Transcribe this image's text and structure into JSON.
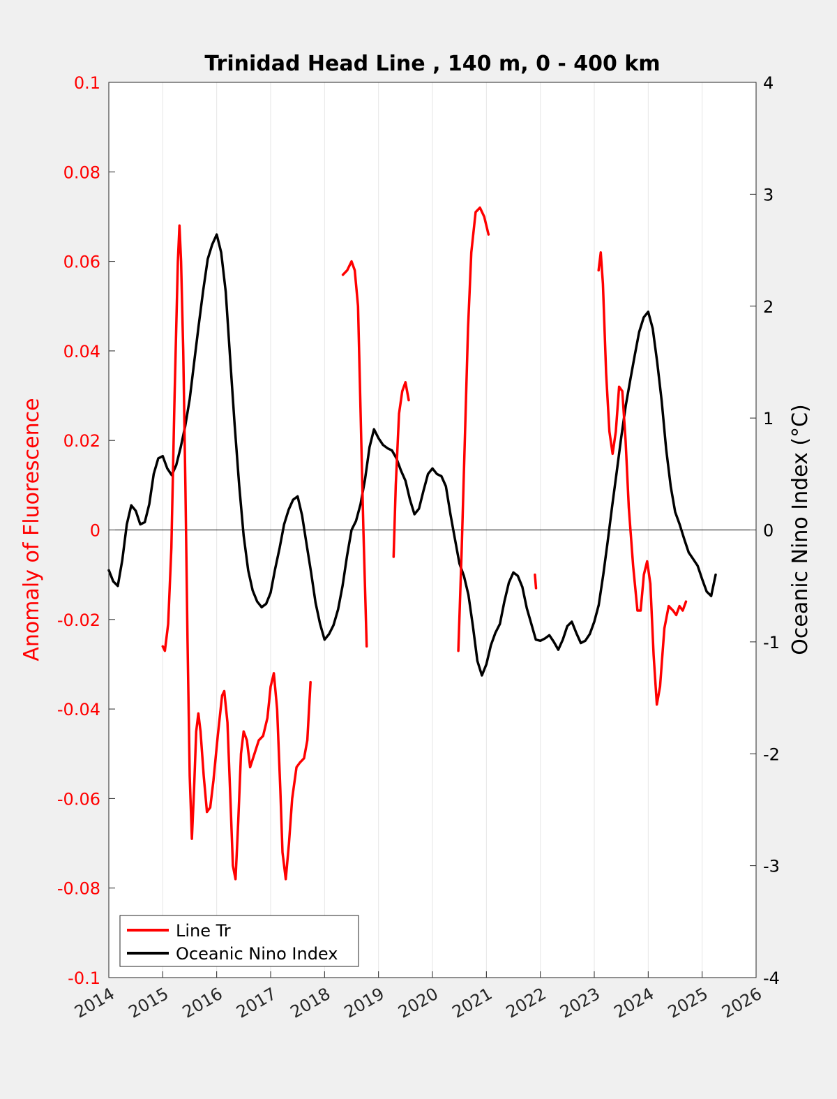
{
  "chart_data": {
    "type": "line",
    "title": "Trinidad Head Line , 140 m, 0 - 400 km",
    "x_axis": {
      "range": [
        2014,
        2026
      ],
      "ticks": [
        "2014",
        "2015",
        "2016",
        "2017",
        "2018",
        "2019",
        "2020",
        "2021",
        "2022",
        "2023",
        "2024",
        "2025",
        "2026"
      ],
      "grid": true
    },
    "y_left": {
      "label": "Anomaly of Fluorescence",
      "range": [
        -0.1,
        0.1
      ],
      "ticks": [
        "-0.1",
        "-0.08",
        "-0.06",
        "-0.04",
        "-0.02",
        "0",
        "0.02",
        "0.04",
        "0.06",
        "0.08",
        "0.1"
      ],
      "color": "#ff0000"
    },
    "y_right": {
      "label": "Oceanic Nino Index (°C)",
      "range": [
        -4,
        4
      ],
      "ticks": [
        "-4",
        "-3",
        "-2",
        "-1",
        "0",
        "1",
        "2",
        "3",
        "4"
      ],
      "color": "#000000"
    },
    "zero_line": true,
    "legend": {
      "position": "bottom-left",
      "entries": [
        "Line Tr",
        "Oceanic Nino Index"
      ]
    },
    "series": [
      {
        "name": "Line Tr",
        "axis": "left",
        "color": "#ff0000",
        "segments": [
          [
            [
              2015.0,
              -0.026
            ],
            [
              2015.04,
              -0.027
            ],
            [
              2015.1,
              -0.021
            ],
            [
              2015.16,
              -0.004
            ],
            [
              2015.22,
              0.03
            ],
            [
              2015.28,
              0.06
            ],
            [
              2015.31,
              0.068
            ],
            [
              2015.34,
              0.06
            ],
            [
              2015.38,
              0.04
            ],
            [
              2015.42,
              0.01
            ],
            [
              2015.46,
              -0.025
            ],
            [
              2015.5,
              -0.055
            ],
            [
              2015.54,
              -0.069
            ],
            [
              2015.58,
              -0.058
            ],
            [
              2015.62,
              -0.045
            ],
            [
              2015.66,
              -0.041
            ],
            [
              2015.7,
              -0.045
            ],
            [
              2015.76,
              -0.055
            ],
            [
              2015.82,
              -0.063
            ],
            [
              2015.88,
              -0.062
            ],
            [
              2015.94,
              -0.056
            ],
            [
              2016.02,
              -0.046
            ],
            [
              2016.1,
              -0.037
            ],
            [
              2016.14,
              -0.036
            ],
            [
              2016.2,
              -0.043
            ],
            [
              2016.26,
              -0.062
            ],
            [
              2016.3,
              -0.075
            ],
            [
              2016.35,
              -0.078
            ],
            [
              2016.4,
              -0.065
            ],
            [
              2016.45,
              -0.05
            ],
            [
              2016.5,
              -0.045
            ],
            [
              2016.56,
              -0.047
            ],
            [
              2016.62,
              -0.053
            ],
            [
              2016.7,
              -0.05
            ],
            [
              2016.78,
              -0.047
            ],
            [
              2016.86,
              -0.046
            ],
            [
              2016.94,
              -0.042
            ],
            [
              2017.0,
              -0.035
            ],
            [
              2017.06,
              -0.032
            ],
            [
              2017.12,
              -0.04
            ],
            [
              2017.18,
              -0.058
            ],
            [
              2017.22,
              -0.072
            ],
            [
              2017.28,
              -0.078
            ],
            [
              2017.34,
              -0.07
            ],
            [
              2017.4,
              -0.06
            ],
            [
              2017.48,
              -0.053
            ],
            [
              2017.54,
              -0.052
            ],
            [
              2017.62,
              -0.051
            ],
            [
              2017.68,
              -0.047
            ],
            [
              2017.74,
              -0.034
            ]
          ],
          [
            [
              2018.34,
              0.057
            ],
            [
              2018.42,
              0.058
            ],
            [
              2018.5,
              0.06
            ],
            [
              2018.56,
              0.058
            ],
            [
              2018.62,
              0.05
            ],
            [
              2018.66,
              0.03
            ],
            [
              2018.72,
              0.0
            ],
            [
              2018.78,
              -0.026
            ]
          ],
          [
            [
              2019.28,
              -0.006
            ],
            [
              2019.32,
              0.01
            ],
            [
              2019.38,
              0.026
            ],
            [
              2019.44,
              0.031
            ],
            [
              2019.5,
              0.033
            ],
            [
              2019.56,
              0.029
            ]
          ],
          [
            [
              2020.48,
              -0.027
            ],
            [
              2020.54,
              -0.005
            ],
            [
              2020.6,
              0.02
            ],
            [
              2020.66,
              0.045
            ],
            [
              2020.72,
              0.062
            ],
            [
              2020.8,
              0.071
            ],
            [
              2020.88,
              0.072
            ],
            [
              2020.96,
              0.07
            ],
            [
              2021.04,
              0.066
            ]
          ],
          [
            [
              2021.9,
              -0.01
            ],
            [
              2021.92,
              -0.013
            ]
          ],
          [
            [
              2023.08,
              0.058
            ],
            [
              2023.12,
              0.062
            ],
            [
              2023.16,
              0.055
            ],
            [
              2023.22,
              0.035
            ],
            [
              2023.28,
              0.022
            ],
            [
              2023.34,
              0.017
            ],
            [
              2023.4,
              0.022
            ],
            [
              2023.46,
              0.032
            ],
            [
              2023.52,
              0.031
            ],
            [
              2023.58,
              0.02
            ],
            [
              2023.64,
              0.005
            ],
            [
              2023.72,
              -0.008
            ],
            [
              2023.8,
              -0.018
            ],
            [
              2023.86,
              -0.018
            ],
            [
              2023.92,
              -0.01
            ],
            [
              2023.98,
              -0.007
            ],
            [
              2024.04,
              -0.012
            ],
            [
              2024.1,
              -0.028
            ],
            [
              2024.16,
              -0.039
            ],
            [
              2024.22,
              -0.035
            ],
            [
              2024.3,
              -0.022
            ],
            [
              2024.38,
              -0.017
            ],
            [
              2024.46,
              -0.018
            ],
            [
              2024.52,
              -0.019
            ],
            [
              2024.58,
              -0.017
            ],
            [
              2024.64,
              -0.018
            ],
            [
              2024.7,
              -0.016
            ]
          ]
        ]
      },
      {
        "name": "Oceanic Nino Index",
        "axis": "right",
        "color": "#000000",
        "segments": [
          [
            [
              2014.0,
              -0.36
            ],
            [
              2014.083,
              -0.46
            ],
            [
              2014.167,
              -0.5
            ],
            [
              2014.25,
              -0.27
            ],
            [
              2014.333,
              0.05
            ],
            [
              2014.417,
              0.22
            ],
            [
              2014.5,
              0.17
            ],
            [
              2014.583,
              0.05
            ],
            [
              2014.667,
              0.07
            ],
            [
              2014.75,
              0.23
            ],
            [
              2014.833,
              0.5
            ],
            [
              2014.917,
              0.64
            ],
            [
              2015.0,
              0.66
            ],
            [
              2015.083,
              0.55
            ],
            [
              2015.167,
              0.49
            ],
            [
              2015.25,
              0.58
            ],
            [
              2015.333,
              0.74
            ],
            [
              2015.417,
              0.93
            ],
            [
              2015.5,
              1.17
            ],
            [
              2015.583,
              1.5
            ],
            [
              2015.667,
              1.83
            ],
            [
              2015.75,
              2.14
            ],
            [
              2015.833,
              2.42
            ],
            [
              2015.917,
              2.55
            ],
            [
              2016.0,
              2.64
            ],
            [
              2016.083,
              2.48
            ],
            [
              2016.167,
              2.13
            ],
            [
              2016.25,
              1.53
            ],
            [
              2016.333,
              0.94
            ],
            [
              2016.417,
              0.4
            ],
            [
              2016.5,
              -0.05
            ],
            [
              2016.583,
              -0.36
            ],
            [
              2016.667,
              -0.54
            ],
            [
              2016.75,
              -0.64
            ],
            [
              2016.833,
              -0.69
            ],
            [
              2016.917,
              -0.66
            ],
            [
              2017.0,
              -0.56
            ],
            [
              2017.083,
              -0.35
            ],
            [
              2017.167,
              -0.16
            ],
            [
              2017.25,
              0.05
            ],
            [
              2017.333,
              0.18
            ],
            [
              2017.417,
              0.27
            ],
            [
              2017.5,
              0.3
            ],
            [
              2017.583,
              0.13
            ],
            [
              2017.667,
              -0.13
            ],
            [
              2017.75,
              -0.38
            ],
            [
              2017.833,
              -0.65
            ],
            [
              2017.917,
              -0.84
            ],
            [
              2018.0,
              -0.98
            ],
            [
              2018.083,
              -0.93
            ],
            [
              2018.167,
              -0.85
            ],
            [
              2018.25,
              -0.71
            ],
            [
              2018.333,
              -0.5
            ],
            [
              2018.417,
              -0.23
            ],
            [
              2018.5,
              0.0
            ],
            [
              2018.583,
              0.08
            ],
            [
              2018.667,
              0.23
            ],
            [
              2018.75,
              0.45
            ],
            [
              2018.833,
              0.74
            ],
            [
              2018.917,
              0.9
            ],
            [
              2019.0,
              0.82
            ],
            [
              2019.083,
              0.76
            ],
            [
              2019.167,
              0.73
            ],
            [
              2019.25,
              0.71
            ],
            [
              2019.333,
              0.64
            ],
            [
              2019.417,
              0.53
            ],
            [
              2019.5,
              0.44
            ],
            [
              2019.583,
              0.27
            ],
            [
              2019.667,
              0.14
            ],
            [
              2019.75,
              0.19
            ],
            [
              2019.833,
              0.35
            ],
            [
              2019.917,
              0.5
            ],
            [
              2020.0,
              0.55
            ],
            [
              2020.083,
              0.5
            ],
            [
              2020.167,
              0.48
            ],
            [
              2020.25,
              0.39
            ],
            [
              2020.333,
              0.14
            ],
            [
              2020.417,
              -0.08
            ],
            [
              2020.5,
              -0.3
            ],
            [
              2020.583,
              -0.41
            ],
            [
              2020.667,
              -0.58
            ],
            [
              2020.75,
              -0.86
            ],
            [
              2020.833,
              -1.17
            ],
            [
              2020.917,
              -1.3
            ],
            [
              2021.0,
              -1.2
            ],
            [
              2021.083,
              -1.03
            ],
            [
              2021.167,
              -0.92
            ],
            [
              2021.25,
              -0.84
            ],
            [
              2021.333,
              -0.64
            ],
            [
              2021.417,
              -0.47
            ],
            [
              2021.5,
              -0.38
            ],
            [
              2021.583,
              -0.41
            ],
            [
              2021.667,
              -0.51
            ],
            [
              2021.75,
              -0.7
            ],
            [
              2021.833,
              -0.84
            ],
            [
              2021.917,
              -0.98
            ],
            [
              2022.0,
              -0.99
            ],
            [
              2022.083,
              -0.97
            ],
            [
              2022.167,
              -0.94
            ],
            [
              2022.25,
              -1.0
            ],
            [
              2022.333,
              -1.07
            ],
            [
              2022.417,
              -0.98
            ],
            [
              2022.5,
              -0.86
            ],
            [
              2022.583,
              -0.82
            ],
            [
              2022.667,
              -0.92
            ],
            [
              2022.75,
              -1.01
            ],
            [
              2022.833,
              -0.99
            ],
            [
              2022.917,
              -0.93
            ],
            [
              2023.0,
              -0.82
            ],
            [
              2023.083,
              -0.67
            ],
            [
              2023.167,
              -0.4
            ],
            [
              2023.25,
              -0.1
            ],
            [
              2023.333,
              0.22
            ],
            [
              2023.417,
              0.52
            ],
            [
              2023.5,
              0.83
            ],
            [
              2023.583,
              1.11
            ],
            [
              2023.667,
              1.34
            ],
            [
              2023.75,
              1.56
            ],
            [
              2023.833,
              1.77
            ],
            [
              2023.917,
              1.9
            ],
            [
              2024.0,
              1.95
            ],
            [
              2024.083,
              1.8
            ],
            [
              2024.167,
              1.5
            ],
            [
              2024.25,
              1.15
            ],
            [
              2024.333,
              0.72
            ],
            [
              2024.417,
              0.39
            ],
            [
              2024.5,
              0.16
            ],
            [
              2024.583,
              0.05
            ],
            [
              2024.667,
              -0.08
            ],
            [
              2024.75,
              -0.2
            ],
            [
              2024.833,
              -0.26
            ],
            [
              2024.917,
              -0.32
            ],
            [
              2025.0,
              -0.44
            ],
            [
              2025.083,
              -0.55
            ],
            [
              2025.167,
              -0.59
            ],
            [
              2025.25,
              -0.4
            ]
          ]
        ]
      }
    ]
  }
}
